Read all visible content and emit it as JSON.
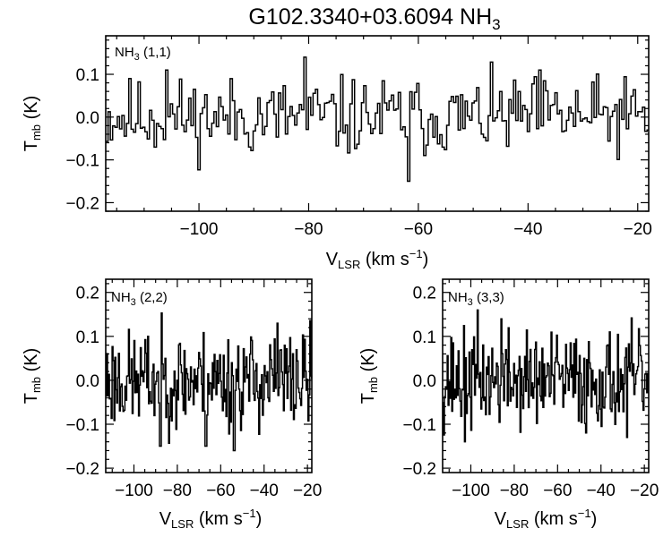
{
  "figure": {
    "title": "G102.3340+03.6094 NH",
    "title_sub": "3"
  },
  "axis_text": {
    "x_main": "V",
    "x_sub": "LSR",
    "x_unit_pre": " (km s",
    "x_unit_sup": "−1",
    "x_unit_post": ")",
    "y_main": "T",
    "y_sub": "mb",
    "y_unit": " (K)"
  },
  "chart_data": [
    {
      "type": "line",
      "name": "NH3 (1,1)",
      "label": {
        "main": "NH",
        "sub": "3",
        "post": " (1,1)"
      },
      "xlim": [
        -117,
        -18
      ],
      "ylim": [
        -0.22,
        0.19
      ],
      "xticks": [
        -100,
        -80,
        -60,
        -40,
        -20
      ],
      "yticks": [
        -0.2,
        -0.1,
        0.0,
        0.1
      ],
      "ytick_labels": [
        "−0.2",
        "−0.1",
        "0.0",
        "0.1"
      ],
      "xtick_labels": [
        "−100",
        "−80",
        "−60",
        "−40",
        "−20"
      ],
      "x_start": -117,
      "x_step": 0.42,
      "seed": 11,
      "noise_amp": 0.045,
      "features": [
        {
          "x": -106,
          "y": 0.11
        },
        {
          "x": -81,
          "y": 0.14
        },
        {
          "x": -62,
          "y": -0.15
        },
        {
          "x": -38,
          "y": 0.11
        }
      ]
    },
    {
      "type": "line",
      "name": "NH3 (2,2)",
      "label": {
        "main": "NH",
        "sub": "3",
        "post": " (2,2)"
      },
      "xlim": [
        -113,
        -18
      ],
      "ylim": [
        -0.21,
        0.23
      ],
      "xticks": [
        -100,
        -80,
        -60,
        -40,
        -20
      ],
      "yticks": [
        -0.2,
        -0.1,
        0.0,
        0.1,
        0.2
      ],
      "ytick_labels": [
        "−0.2",
        "−0.1",
        "0.0",
        "0.1",
        "0.2"
      ],
      "xtick_labels": [
        "−100",
        "−80",
        "−60",
        "−40",
        "−20"
      ],
      "x_start": -113,
      "x_step": 0.42,
      "seed": 23,
      "noise_amp": 0.055,
      "features": [
        {
          "x": -88,
          "y": -0.15
        },
        {
          "x": -67,
          "y": -0.15
        },
        {
          "x": -54,
          "y": -0.16
        },
        {
          "x": -34,
          "y": 0.13
        }
      ]
    },
    {
      "type": "line",
      "name": "NH3 (3,3)",
      "label": {
        "main": "NH",
        "sub": "3",
        "post": " (3,3)"
      },
      "xlim": [
        -113,
        -18
      ],
      "ylim": [
        -0.21,
        0.23
      ],
      "xticks": [
        -100,
        -80,
        -60,
        -40,
        -20
      ],
      "yticks": [
        -0.2,
        -0.1,
        0.0,
        0.1,
        0.2
      ],
      "ytick_labels": [
        "−0.2",
        "−0.1",
        "0.0",
        "0.1",
        "0.2"
      ],
      "xtick_labels": [
        "−100",
        "−80",
        "−60",
        "−40",
        "−20"
      ],
      "x_start": -113,
      "x_step": 0.42,
      "seed": 37,
      "noise_amp": 0.055,
      "features": [
        {
          "x": -97,
          "y": 0.16
        },
        {
          "x": -86,
          "y": 0.14
        },
        {
          "x": -103,
          "y": -0.14
        },
        {
          "x": -47,
          "y": -0.12
        },
        {
          "x": -28,
          "y": -0.13
        }
      ]
    }
  ]
}
